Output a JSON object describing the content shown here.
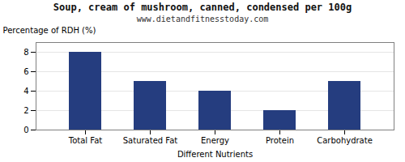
{
  "chart_data": {
    "type": "bar",
    "title": "Soup, cream of mushroom, canned, condensed per 100g",
    "subtitle": "www.dietandfitnesstoday.com",
    "xlabel": "Different Nutrients",
    "ylabel": "Percentage of RDH (%)",
    "categories": [
      "Total Fat",
      "Saturated Fat",
      "Energy",
      "Protein",
      "Carbohydrate"
    ],
    "values": [
      8.0,
      5.0,
      4.0,
      2.0,
      5.0
    ],
    "color": "#253d7f",
    "ylim": [
      0,
      9
    ],
    "yticks": [
      0,
      2,
      4,
      6,
      8
    ],
    "grid": true
  }
}
